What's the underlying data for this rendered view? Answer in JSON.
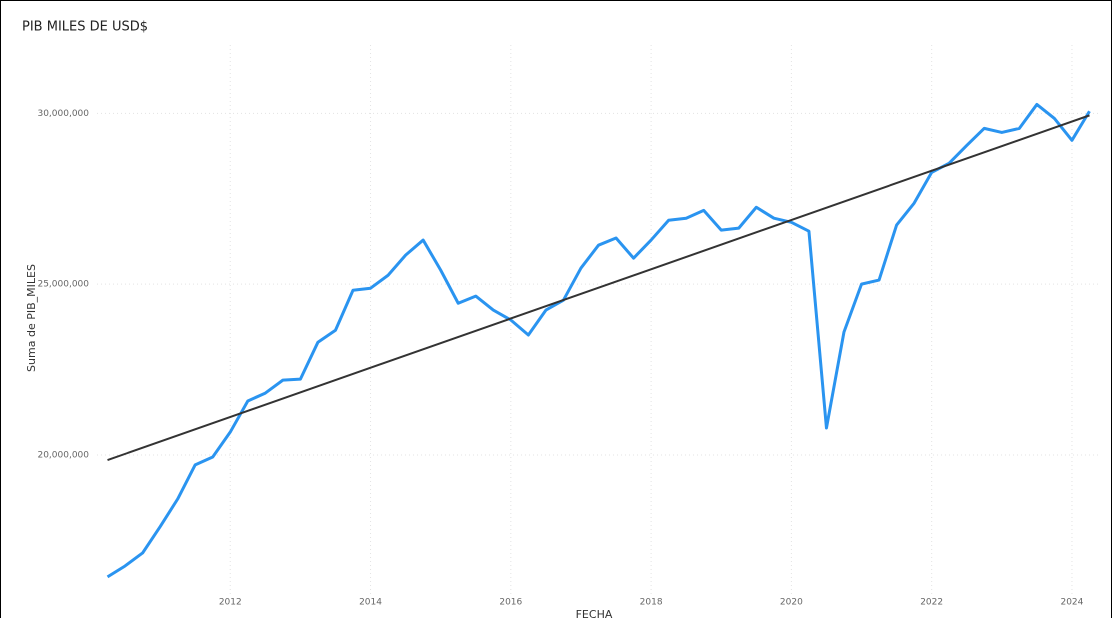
{
  "chart_data": {
    "type": "line",
    "title": "PIB MILES DE USD$",
    "x_label": "FECHA",
    "y_label": "Suma de PIB_MILES",
    "x": [
      2010.25,
      2010.5,
      2010.75,
      2011,
      2011.25,
      2011.5,
      2011.75,
      2012,
      2012.25,
      2012.5,
      2012.75,
      2013,
      2013.25,
      2013.5,
      2013.75,
      2014,
      2014.25,
      2014.5,
      2014.75,
      2015,
      2015.25,
      2015.5,
      2015.75,
      2016,
      2016.25,
      2016.5,
      2016.75,
      2017,
      2017.25,
      2017.5,
      2017.75,
      2018,
      2018.25,
      2018.5,
      2018.75,
      2019,
      2019.25,
      2019.5,
      2019.75,
      2020,
      2020.25,
      2020.5,
      2020.75,
      2021,
      2021.25,
      2021.5,
      2021.75,
      2022,
      2022.25,
      2022.5,
      2022.75,
      2023,
      2023.25,
      2023.5,
      2023.75,
      2024,
      2024.25
    ],
    "series": [
      {
        "color": "#2a94f0",
        "values": [
          16430000,
          16750000,
          17130000,
          17900000,
          18710000,
          19710000,
          19940000,
          20670000,
          21580000,
          21810000,
          22190000,
          22220000,
          23300000,
          23650000,
          24820000,
          24880000,
          25260000,
          25850000,
          26290000,
          25410000,
          24440000,
          24650000,
          24240000,
          23950000,
          23510000,
          24240000,
          24530000,
          25470000,
          26140000,
          26350000,
          25760000,
          26290000,
          26870000,
          26930000,
          27160000,
          26580000,
          26640000,
          27250000,
          26930000,
          26810000,
          26550000,
          20790000,
          23600000,
          25000000,
          25120000,
          26730000,
          27370000,
          28270000,
          28540000,
          29060000,
          29560000,
          29440000,
          29560000,
          30260000,
          29850000,
          29210000,
          30060000
        ]
      }
    ],
    "trend": {
      "color": "#333333",
      "x": [
        2010.25,
        2024.25
      ],
      "values": [
        19850000,
        29940000
      ]
    },
    "xlim": [
      2010.1,
      2024.4
    ],
    "xticks": [
      2012,
      2014,
      2016,
      2018,
      2020,
      2022,
      2024
    ],
    "ylim": [
      15900000,
      32000000
    ],
    "yticks": [
      {
        "value": 20000000,
        "label": "20,000,000"
      },
      {
        "value": 25000000,
        "label": "25,000,000"
      },
      {
        "value": 30000000,
        "label": "30,000,000"
      }
    ],
    "grid": true
  }
}
